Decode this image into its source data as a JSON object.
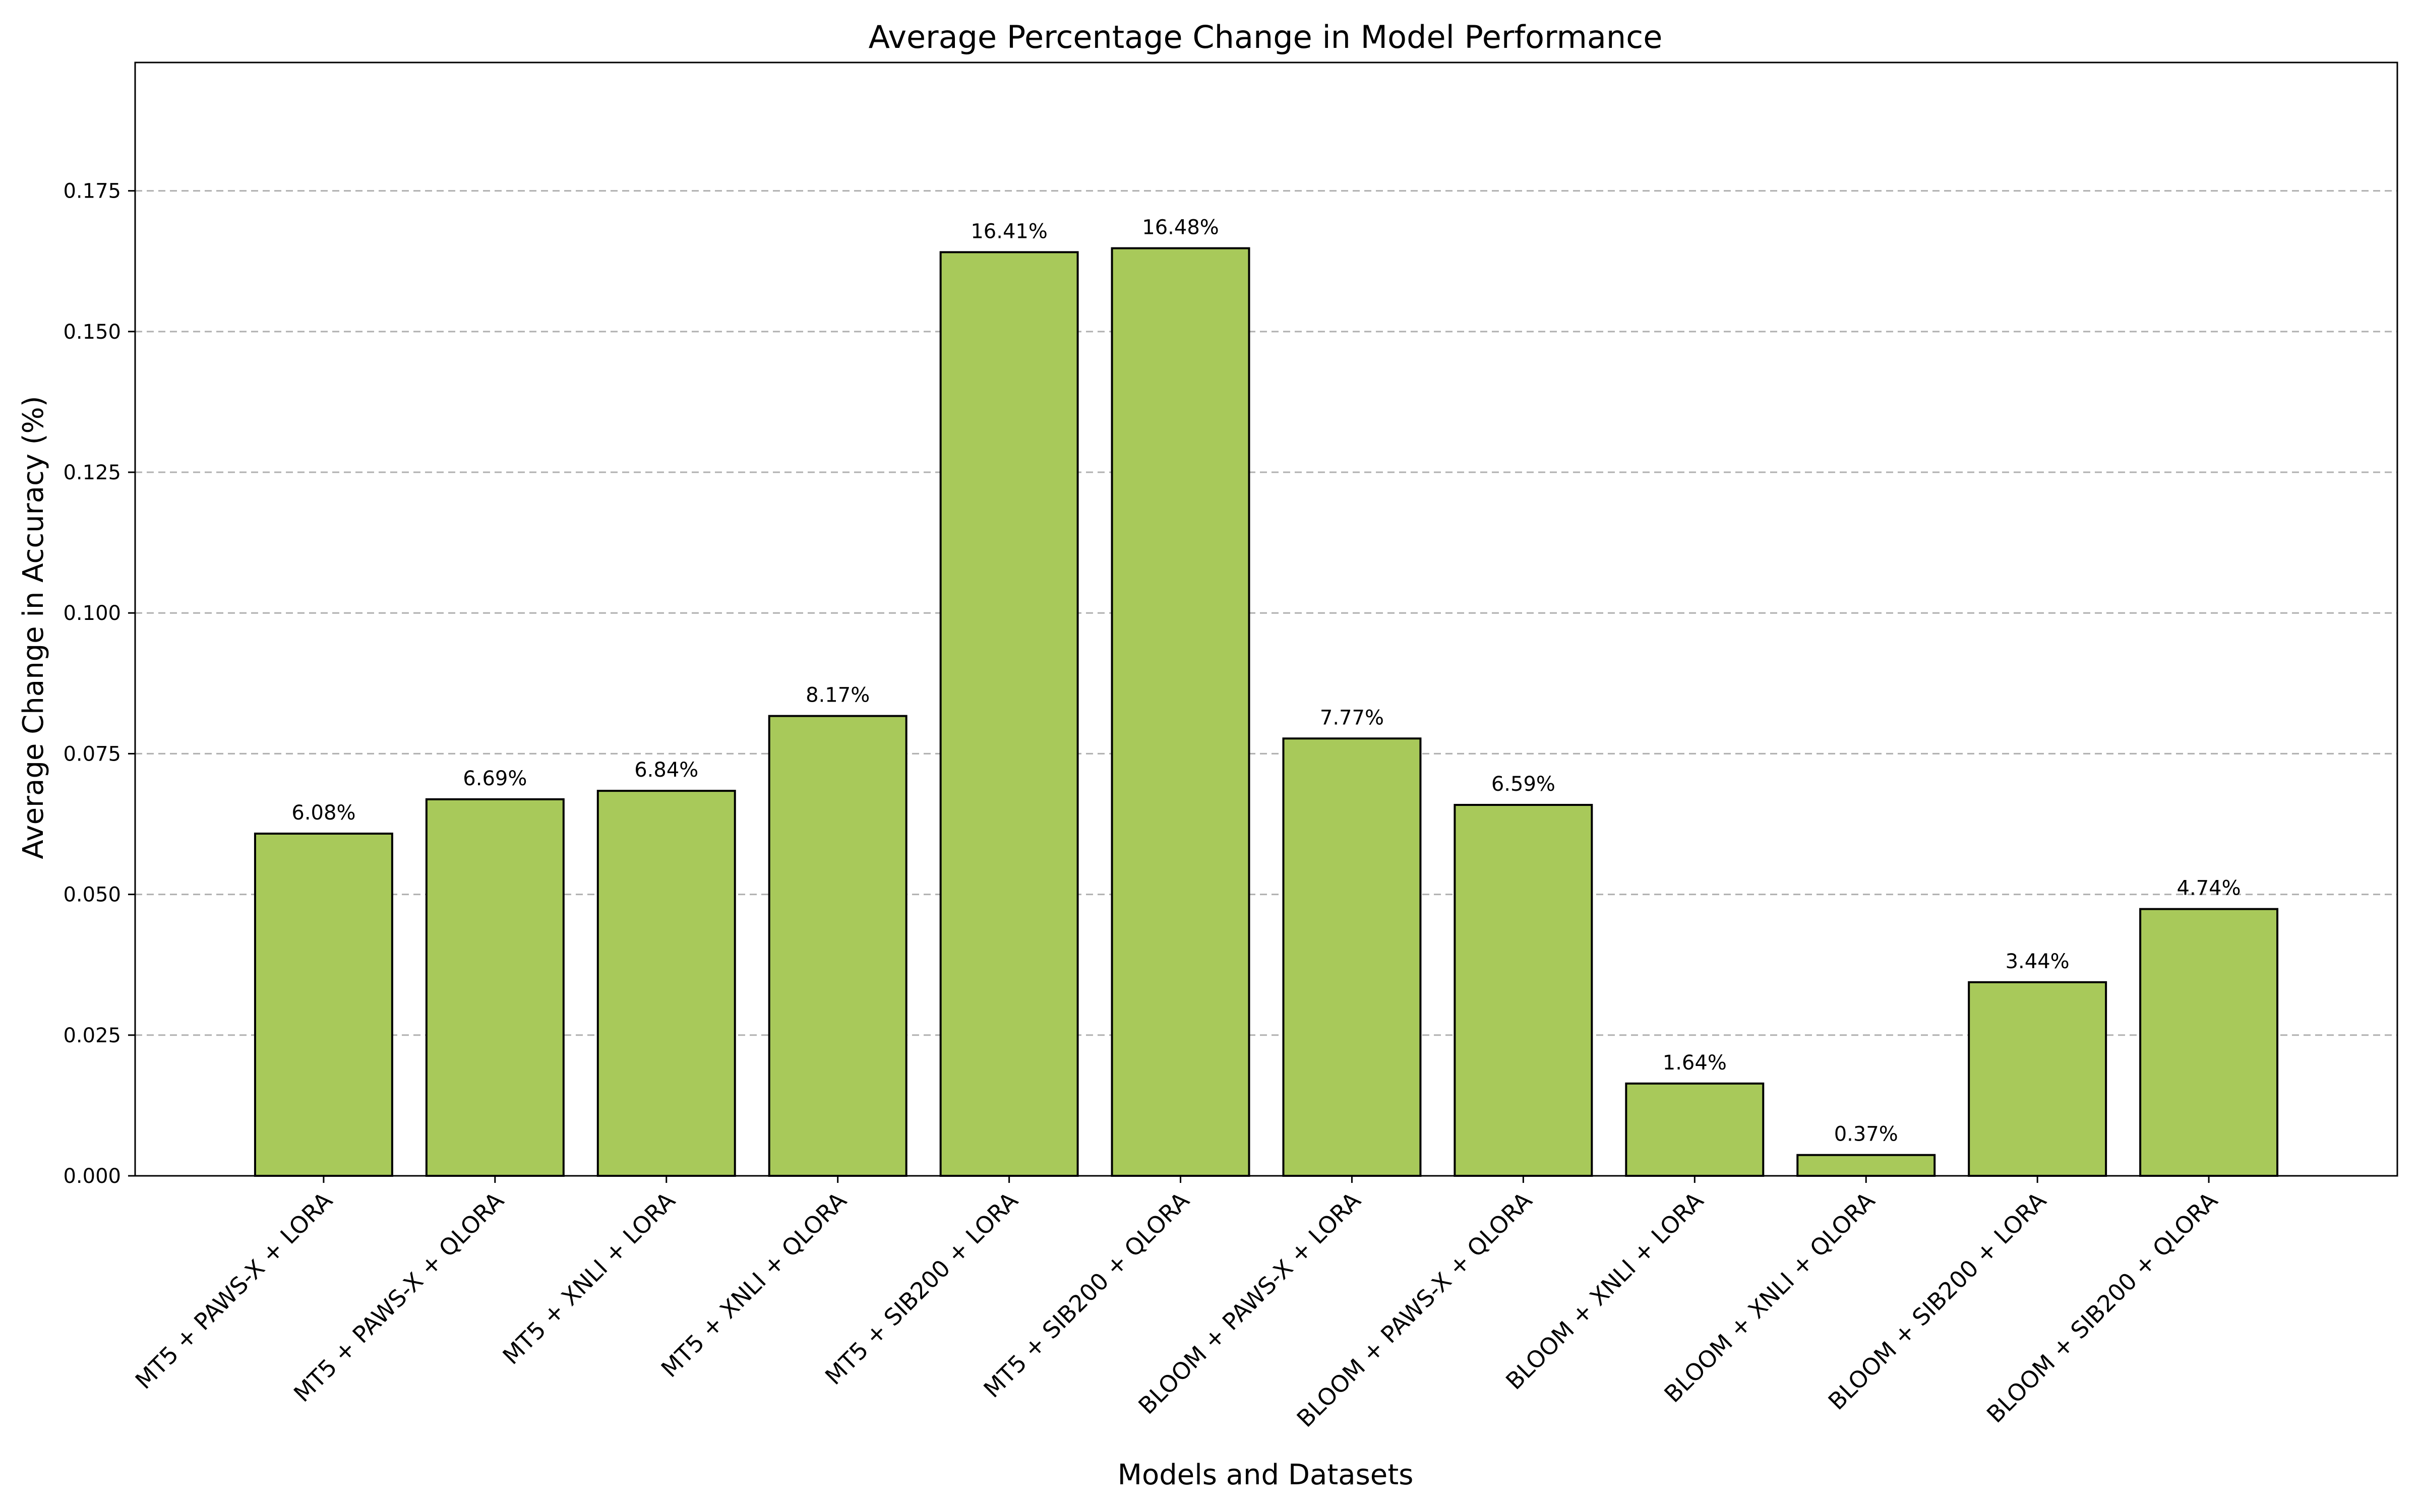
{
  "chart_data": {
    "type": "bar",
    "title": "Average Percentage Change in Model Performance",
    "xlabel": "Models and Datasets",
    "ylabel": "Average Change in Accuracy (%)",
    "categories": [
      "MT5 + PAWS-X + LORA",
      "MT5 + PAWS-X + QLORA",
      "MT5 + XNLI + LORA",
      "MT5 + XNLI + QLORA",
      "MT5 + SIB200 + LORA",
      "MT5 + SIB200 + QLORA",
      "BLOOM + PAWS-X + LORA",
      "BLOOM + PAWS-X + QLORA",
      "BLOOM + XNLI + LORA",
      "BLOOM + XNLI + QLORA",
      "BLOOM + SIB200 + LORA",
      "BLOOM + SIB200 + QLORA"
    ],
    "values": [
      0.0608,
      0.0669,
      0.0684,
      0.0817,
      0.1641,
      0.1648,
      0.0777,
      0.0659,
      0.0164,
      0.0037,
      0.0344,
      0.0474
    ],
    "data_labels": [
      "6.08%",
      "6.69%",
      "6.84%",
      "8.17%",
      "16.41%",
      "16.48%",
      "7.77%",
      "6.59%",
      "1.64%",
      "0.37%",
      "3.44%",
      "4.74%"
    ],
    "ylim": [
      0,
      0.1978
    ],
    "yticks": [
      0.0,
      0.025,
      0.05,
      0.075,
      0.1,
      0.125,
      0.15,
      0.175
    ],
    "ytick_labels": [
      "0.000",
      "0.025",
      "0.050",
      "0.075",
      "0.100",
      "0.125",
      "0.150",
      "0.175"
    ],
    "grid": "y-dashed",
    "bar_color": "#a8c95a",
    "bar_edge_color": "#000000"
  }
}
